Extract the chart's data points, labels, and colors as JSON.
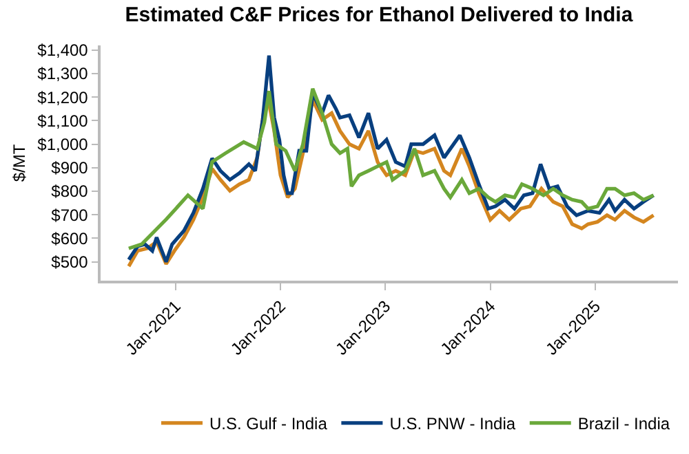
{
  "chart_data": {
    "type": "line",
    "title": "Estimated C&F Prices for Ethanol Delivered to India",
    "ylabel": "$/MT",
    "xlim": [
      "2020-04-15",
      "2025-10-15"
    ],
    "xticks": [
      {
        "value": "2021-01-01",
        "label": "Jan-2021"
      },
      {
        "value": "2022-01-01",
        "label": "Jan-2022"
      },
      {
        "value": "2023-01-01",
        "label": "Jan-2023"
      },
      {
        "value": "2024-01-01",
        "label": "Jan-2024"
      },
      {
        "value": "2025-01-01",
        "label": "Jan-2025"
      }
    ],
    "ylim": [
      420,
      1420
    ],
    "yticks": [
      {
        "value": 500,
        "label": "$500"
      },
      {
        "value": 600,
        "label": "$600"
      },
      {
        "value": 700,
        "label": "$700"
      },
      {
        "value": 800,
        "label": "$800"
      },
      {
        "value": 900,
        "label": "$900"
      },
      {
        "value": 1000,
        "label": "$1,000"
      },
      {
        "value": 1100,
        "label": "$1,100"
      },
      {
        "value": 1200,
        "label": "$1,200"
      },
      {
        "value": 1300,
        "label": "$1,300"
      },
      {
        "value": 1400,
        "label": "$1,400"
      }
    ],
    "grid": false,
    "legend": "bottom",
    "marker": "none",
    "line_style": "solid",
    "series": [
      {
        "name": "U.S. Gulf - India",
        "color": "#d4861f",
        "x": [
          "2020-07-22",
          "2020-08-22",
          "2020-09-24",
          "2020-10-27",
          "2020-11-29",
          "2020-12-28",
          "2021-01-30",
          "2021-03-04",
          "2021-04-06",
          "2021-05-08",
          "2021-06-06",
          "2021-07-09",
          "2021-08-11",
          "2021-09-13",
          "2021-10-12",
          "2021-11-14",
          "2021-12-10",
          "2022-01-01",
          "2022-01-26",
          "2022-02-20",
          "2022-03-20",
          "2022-04-23",
          "2022-05-26",
          "2022-06-28",
          "2022-07-27",
          "2022-08-29",
          "2022-10-01",
          "2022-11-03",
          "2022-12-05",
          "2023-01-05",
          "2023-02-06",
          "2023-03-11",
          "2023-04-12",
          "2023-05-12",
          "2023-06-21",
          "2023-07-24",
          "2023-08-15",
          "2023-09-24",
          "2023-10-20",
          "2023-11-22",
          "2024-01-01",
          "2024-02-02",
          "2024-03-07",
          "2024-04-16",
          "2024-05-18",
          "2024-06-27",
          "2024-08-07",
          "2024-09-09",
          "2024-10-12",
          "2024-11-14",
          "2024-12-06",
          "2025-01-08",
          "2025-02-10",
          "2025-03-10",
          "2025-04-12",
          "2025-05-15",
          "2025-06-17",
          "2025-07-22"
        ],
        "values": [
          481,
          547,
          557,
          585,
          491,
          547,
          604,
          679,
          774,
          896,
          849,
          802,
          830,
          849,
          943,
          1226,
          1057,
          868,
          774,
          811,
          962,
          1189,
          1104,
          1132,
          1057,
          1000,
          981,
          1057,
          924,
          868,
          887,
          868,
          972,
          962,
          981,
          887,
          868,
          981,
          906,
          792,
          679,
          717,
          679,
          726,
          736,
          811,
          755,
          736,
          660,
          642,
          660,
          670,
          698,
          679,
          717,
          689,
          670,
          698
        ]
      },
      {
        "name": "U.S. PNW - India",
        "color": "#083f7f",
        "x": [
          "2020-07-22",
          "2020-08-22",
          "2020-09-16",
          "2020-10-12",
          "2020-10-27",
          "2020-11-29",
          "2020-12-20",
          "2021-01-30",
          "2021-03-04",
          "2021-04-06",
          "2021-05-08",
          "2021-06-06",
          "2021-07-09",
          "2021-08-11",
          "2021-09-13",
          "2021-10-05",
          "2021-10-31",
          "2021-11-22",
          "2021-12-10",
          "2021-12-28",
          "2022-01-12",
          "2022-01-26",
          "2022-02-10",
          "2022-03-07",
          "2022-04-01",
          "2022-04-23",
          "2022-05-26",
          "2022-06-17",
          "2022-07-13",
          "2022-07-27",
          "2022-08-29",
          "2022-10-01",
          "2022-11-03",
          "2022-12-05",
          "2023-01-05",
          "2023-02-06",
          "2023-03-11",
          "2023-04-01",
          "2023-05-12",
          "2023-06-21",
          "2023-07-24",
          "2023-08-15",
          "2023-09-17",
          "2023-10-20",
          "2023-11-22",
          "2023-12-25",
          "2024-01-19",
          "2024-02-21",
          "2024-03-25",
          "2024-04-27",
          "2024-05-27",
          "2024-06-24",
          "2024-07-24",
          "2024-08-22",
          "2024-09-24",
          "2024-10-27",
          "2024-12-06",
          "2025-01-15",
          "2025-02-17",
          "2025-03-10",
          "2025-04-12",
          "2025-05-15",
          "2025-06-17",
          "2025-07-22"
        ],
        "values": [
          509,
          566,
          575,
          547,
          604,
          500,
          575,
          632,
          708,
          811,
          940,
          887,
          849,
          877,
          915,
          887,
          1104,
          1377,
          1113,
          1019,
          868,
          792,
          792,
          972,
          972,
          1217,
          1132,
          1208,
          1150,
          1113,
          1123,
          1028,
          1132,
          981,
          1019,
          924,
          906,
          1000,
          1000,
          1038,
          943,
          981,
          1038,
          943,
          830,
          726,
          736,
          764,
          726,
          783,
          792,
          915,
          811,
          821,
          736,
          698,
          717,
          708,
          764,
          717,
          764,
          726,
          755,
          783
        ]
      },
      {
        "name": "Brazil - India",
        "color": "#6aa83a",
        "x": [
          "2020-07-22",
          "2020-09-05",
          "2020-11-29",
          "2021-02-13",
          "2021-04-06",
          "2021-05-08",
          "2021-06-24",
          "2021-08-26",
          "2021-10-12",
          "2021-11-06",
          "2021-11-22",
          "2021-12-17",
          "2022-01-19",
          "2022-02-20",
          "2022-03-20",
          "2022-04-23",
          "2022-05-26",
          "2022-06-28",
          "2022-07-27",
          "2022-08-22",
          "2022-09-05",
          "2022-10-01",
          "2022-11-03",
          "2022-12-05",
          "2023-01-05",
          "2023-01-26",
          "2023-03-11",
          "2023-04-12",
          "2023-05-12",
          "2023-06-21",
          "2023-07-24",
          "2023-08-15",
          "2023-09-24",
          "2023-10-20",
          "2023-11-22",
          "2023-12-25",
          "2024-01-19",
          "2024-02-21",
          "2024-03-25",
          "2024-04-20",
          "2024-05-27",
          "2024-07-04",
          "2024-08-07",
          "2024-09-09",
          "2024-10-12",
          "2024-11-14",
          "2024-12-06",
          "2025-01-08",
          "2025-02-10",
          "2025-03-10",
          "2025-04-12",
          "2025-05-15",
          "2025-06-17",
          "2025-07-22"
        ],
        "values": [
          557,
          575,
          680,
          783,
          726,
          925,
          962,
          1009,
          981,
          1094,
          1226,
          1000,
          972,
          887,
          1000,
          1236,
          1132,
          1000,
          962,
          981,
          821,
          868,
          887,
          906,
          924,
          849,
          887,
          981,
          868,
          887,
          811,
          774,
          849,
          792,
          811,
          774,
          755,
          783,
          774,
          830,
          811,
          783,
          811,
          783,
          764,
          755,
          726,
          736,
          811,
          811,
          783,
          792,
          764,
          783
        ]
      }
    ]
  }
}
